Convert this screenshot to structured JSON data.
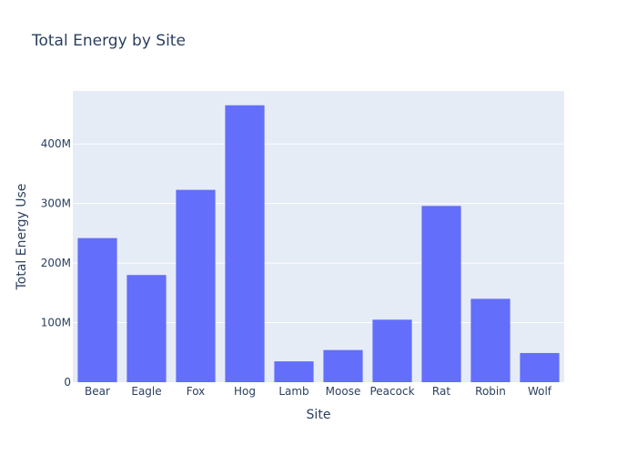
{
  "chart_data": {
    "type": "bar",
    "title": "Total Energy by Site",
    "xlabel": "Site",
    "ylabel": "Total Energy Use",
    "categories": [
      "Bear",
      "Eagle",
      "Fox",
      "Hog",
      "Lamb",
      "Moose",
      "Peacock",
      "Rat",
      "Robin",
      "Wolf"
    ],
    "values": [
      242000000,
      180000000,
      323000000,
      465000000,
      35000000,
      54000000,
      105000000,
      296000000,
      140000000,
      49000000
    ],
    "ylim": [
      0,
      489000000
    ],
    "y_ticks": [
      0,
      100000000,
      200000000,
      300000000,
      400000000
    ],
    "y_tick_labels": [
      "0",
      "100M",
      "200M",
      "300M",
      "400M"
    ],
    "grid": true,
    "legend": "none",
    "colors": {
      "bar": "#636efa",
      "plot_bg": "#e5ecf6",
      "grid": "#ffffff",
      "text": "#2a3f5f"
    }
  }
}
